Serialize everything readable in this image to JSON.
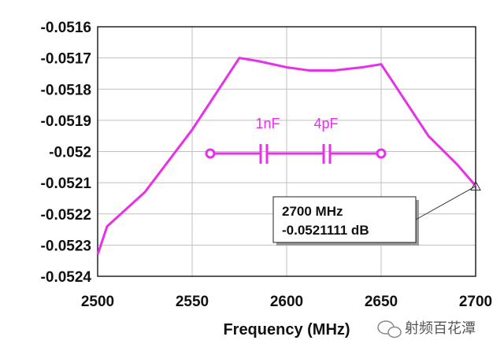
{
  "colors": {
    "trace": "#E830E8",
    "grid": "#bfbfbf",
    "frame": "#222222",
    "text": "#111111"
  },
  "chart_data": {
    "type": "line",
    "title": "",
    "xlabel": "Frequency (MHz)",
    "ylabel": "",
    "xlim": [
      2500,
      2700
    ],
    "ylim": [
      -0.0524,
      -0.0516
    ],
    "x_ticks": [
      2500,
      2550,
      2600,
      2650,
      2700
    ],
    "x_tick_labels": [
      "2500",
      "2550",
      "2600",
      "2650",
      "2700"
    ],
    "y_ticks": [
      -0.0516,
      -0.0517,
      -0.0518,
      -0.0519,
      -0.052,
      -0.0521,
      -0.0522,
      -0.0523,
      -0.0524
    ],
    "y_tick_labels": [
      "-0.0516",
      "-0.0517",
      "-0.0518",
      "-0.0519",
      "-0.052",
      "-0.0521",
      "-0.0522",
      "-0.0523",
      "-0.0524"
    ],
    "grid": true,
    "series": [
      {
        "x": [
          2500,
          2505,
          2525,
          2550,
          2575,
          2585,
          2600,
          2612,
          2625,
          2640,
          2650,
          2675,
          2690,
          2700
        ],
        "y": [
          -0.05233,
          -0.05224,
          -0.05213,
          -0.05193,
          -0.0517,
          -0.05171,
          -0.05173,
          -0.05174,
          -0.05174,
          -0.05173,
          -0.05172,
          -0.05195,
          -0.05204,
          -0.05211
        ]
      }
    ],
    "marker": {
      "x": 2700,
      "y": -0.0521111,
      "label_freq": "2700 MHz",
      "label_value": "-0.0521111 dB"
    }
  },
  "circuit": {
    "c1_label": "1nF",
    "c2_label": "4pF"
  },
  "watermark": {
    "text": "射频百花潭"
  }
}
